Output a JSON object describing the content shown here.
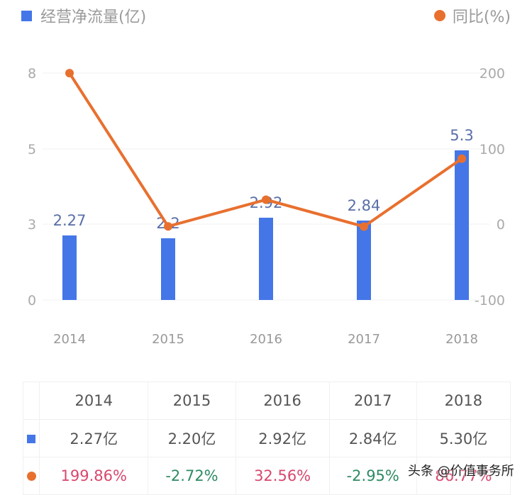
{
  "legend": {
    "bar_label": "经营净流量(亿)",
    "line_label": "同比(%)",
    "bar_color": "#4476e8",
    "line_color": "#e8702f"
  },
  "chart_data": {
    "type": "bar+line",
    "categories": [
      "2014",
      "2015",
      "2016",
      "2017",
      "2018"
    ],
    "series": [
      {
        "name": "经营净流量(亿)",
        "type": "bar",
        "axis": "left",
        "values": [
          2.27,
          2.2,
          2.92,
          2.84,
          5.3
        ],
        "data_labels": [
          "2.27",
          "2.2",
          "2.92",
          "2.84",
          "5.3"
        ]
      },
      {
        "name": "同比(%)",
        "type": "line",
        "axis": "right",
        "values": [
          199.86,
          -2.72,
          32.56,
          -2.95,
          86.77
        ]
      }
    ],
    "left_axis": {
      "ticks": [
        "8",
        "5",
        "3",
        "0"
      ],
      "range": [
        0,
        8
      ]
    },
    "right_axis": {
      "ticks": [
        "200",
        "100",
        "0",
        "-100"
      ],
      "range": [
        -100,
        200
      ]
    },
    "grid": true,
    "legend_position": "top"
  },
  "table": {
    "headers": [
      "2014",
      "2015",
      "2016",
      "2017",
      "2018"
    ],
    "bar_row": [
      "2.27亿",
      "2.20亿",
      "2.92亿",
      "2.84亿",
      "5.30亿"
    ],
    "line_row": [
      "199.86%",
      "-2.72%",
      "32.56%",
      "-2.95%",
      "86.77%"
    ],
    "positive_color": "#d9476e",
    "negative_color": "#2e8a63"
  },
  "watermark": "头条 @价值事务所"
}
